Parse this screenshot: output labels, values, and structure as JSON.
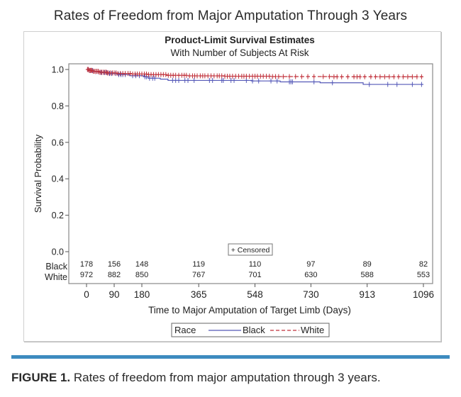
{
  "page": {
    "title": "Rates of Freedom from Major Amputation Through 3 Years",
    "caption_label": "FIGURE 1.",
    "caption_text": " Rates of freedom from major amputation through 3 years."
  },
  "colors": {
    "black_series": "#5559b8",
    "white_series": "#c0303a",
    "rule": "#3d8bbf"
  },
  "chart_data": {
    "type": "line",
    "title": "Product-Limit Survival Estimates",
    "subtitle": "With Number of Subjects At Risk",
    "xlabel": "Time to Major Amputation of Target Limb (Days)",
    "ylabel": "Survival Probability",
    "xlim": [
      0,
      1096
    ],
    "ylim": [
      0,
      1.0
    ],
    "x_ticks": [
      0,
      90,
      180,
      365,
      548,
      730,
      913,
      1096
    ],
    "x_tick_labels": [
      "0",
      "90",
      "180",
      "365",
      "548",
      "730",
      "913",
      "1096"
    ],
    "y_ticks": [
      0.0,
      0.2,
      0.4,
      0.6,
      0.8,
      1.0
    ],
    "y_tick_labels": [
      "0.0",
      "0.2",
      "0.4",
      "0.6",
      "0.8",
      "1.0"
    ],
    "grid": false,
    "censored_legend": "+ Censored",
    "legend": {
      "title": "Race",
      "placement": "bottom-center",
      "entries": [
        "Black",
        "White"
      ]
    },
    "series": [
      {
        "name": "Black",
        "style": "solid",
        "step_points": [
          [
            0,
            1.0
          ],
          [
            10,
            0.994
          ],
          [
            25,
            0.988
          ],
          [
            45,
            0.983
          ],
          [
            70,
            0.978
          ],
          [
            100,
            0.972
          ],
          [
            140,
            0.966
          ],
          [
            185,
            0.96
          ],
          [
            200,
            0.952
          ],
          [
            240,
            0.947
          ],
          [
            265,
            0.94
          ],
          [
            540,
            0.937
          ],
          [
            630,
            0.932
          ],
          [
            760,
            0.927
          ],
          [
            900,
            0.918
          ],
          [
            1096,
            0.918
          ]
        ],
        "censor_times": [
          5,
          12,
          20,
          30,
          38,
          48,
          58,
          66,
          75,
          82,
          95,
          105,
          112,
          118,
          126,
          150,
          160,
          172,
          190,
          195,
          205,
          215,
          222,
          280,
          290,
          300,
          320,
          330,
          350,
          400,
          410,
          440,
          445,
          470,
          480,
          520,
          540,
          560,
          600,
          620,
          660,
          665,
          670,
          740,
          800,
          920,
          980,
          1010,
          1060,
          1090
        ]
      },
      {
        "name": "White",
        "style": "dashed",
        "step_points": [
          [
            0,
            1.0
          ],
          [
            8,
            0.995
          ],
          [
            20,
            0.99
          ],
          [
            40,
            0.985
          ],
          [
            65,
            0.981
          ],
          [
            100,
            0.978
          ],
          [
            150,
            0.975
          ],
          [
            200,
            0.972
          ],
          [
            260,
            0.968
          ],
          [
            330,
            0.965
          ],
          [
            450,
            0.963
          ],
          [
            600,
            0.961
          ],
          [
            800,
            0.96
          ],
          [
            1096,
            0.958
          ]
        ],
        "censor_times": [
          3,
          6,
          9,
          12,
          15,
          18,
          22,
          26,
          30,
          34,
          38,
          42,
          46,
          50,
          55,
          60,
          64,
          68,
          72,
          78,
          84,
          90,
          96,
          102,
          110,
          118,
          126,
          135,
          142,
          150,
          158,
          165,
          172,
          180,
          188,
          195,
          202,
          210,
          218,
          226,
          234,
          242,
          250,
          258,
          266,
          274,
          282,
          290,
          300,
          310,
          318,
          325,
          335,
          345,
          352,
          360,
          370,
          378,
          385,
          395,
          405,
          415,
          425,
          432,
          440,
          450,
          458,
          466,
          475,
          485,
          495,
          505,
          512,
          520,
          530,
          540,
          548,
          556,
          566,
          575,
          585,
          595,
          605,
          615,
          625,
          640,
          660,
          680,
          700,
          720,
          740,
          770,
          790,
          805,
          815,
          830,
          850,
          870,
          880,
          890,
          905,
          925,
          940,
          955,
          970,
          985,
          1000,
          1015,
          1030,
          1045,
          1060,
          1075,
          1090
        ]
      }
    ],
    "at_risk": {
      "labels": [
        "Black",
        "White"
      ],
      "times": [
        0,
        90,
        180,
        365,
        548,
        730,
        913,
        1096
      ],
      "Black": [
        "178",
        "156",
        "148",
        "119",
        "110",
        "97",
        "89",
        "82"
      ],
      "White": [
        "972",
        "882",
        "850",
        "767",
        "701",
        "630",
        "588",
        "553"
      ]
    }
  }
}
